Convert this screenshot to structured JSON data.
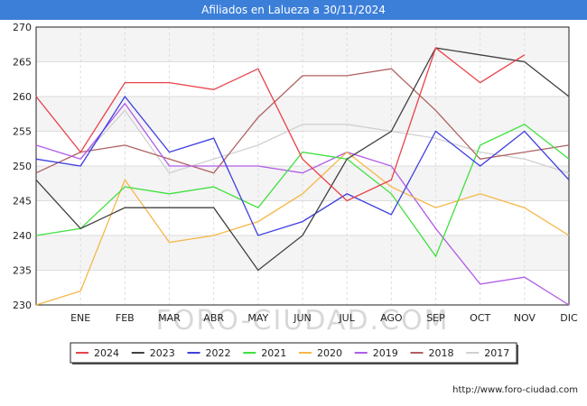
{
  "header": {
    "title": "Afiliados en Lalueza a 30/11/2024"
  },
  "footer": {
    "url": "http://www.foro-ciudad.com"
  },
  "watermark": "FORO-CIUDAD.COM",
  "chart_data": {
    "type": "line",
    "title": "Afiliados en Lalueza a 30/11/2024",
    "xlabel": "",
    "ylabel": "",
    "categories": [
      "",
      "ENE",
      "FEB",
      "MAR",
      "ABR",
      "MAY",
      "JUN",
      "JUL",
      "AGO",
      "SEP",
      "OCT",
      "NOV",
      "DIC"
    ],
    "ylim": [
      230,
      270
    ],
    "yticks": [
      230,
      235,
      240,
      245,
      250,
      255,
      260,
      265,
      270
    ],
    "grid": true,
    "legend_position": "bottom",
    "series": [
      {
        "name": "2024",
        "color": "#e8434a",
        "values": [
          260,
          252,
          262,
          262,
          261,
          264,
          251,
          245,
          248,
          267,
          262,
          266,
          null
        ]
      },
      {
        "name": "2023",
        "color": "#404040",
        "values": [
          248,
          241,
          244,
          244,
          244,
          235,
          240,
          251,
          255,
          267,
          266,
          265,
          260
        ]
      },
      {
        "name": "2022",
        "color": "#3f3fe0",
        "values": [
          251,
          250,
          260,
          252,
          254,
          240,
          242,
          246,
          243,
          255,
          250,
          255,
          248
        ]
      },
      {
        "name": "2021",
        "color": "#40e040",
        "values": [
          240,
          241,
          247,
          246,
          247,
          244,
          252,
          251,
          246,
          237,
          253,
          256,
          251
        ]
      },
      {
        "name": "2020",
        "color": "#f5b748",
        "values": [
          230,
          232,
          248,
          239,
          240,
          242,
          246,
          252,
          247,
          244,
          246,
          244,
          240
        ]
      },
      {
        "name": "2019",
        "color": "#b05ce8",
        "values": [
          253,
          251,
          259,
          250,
          250,
          250,
          249,
          252,
          250,
          241,
          233,
          234,
          230
        ]
      },
      {
        "name": "2018",
        "color": "#b06060",
        "values": [
          249,
          252,
          253,
          251,
          249,
          257,
          263,
          263,
          264,
          258,
          251,
          252,
          253
        ]
      },
      {
        "name": "2017",
        "color": "#d0d0d0",
        "values": [
          null,
          251,
          258,
          249,
          251,
          253,
          256,
          256,
          255,
          254,
          252,
          251,
          249
        ]
      }
    ]
  }
}
